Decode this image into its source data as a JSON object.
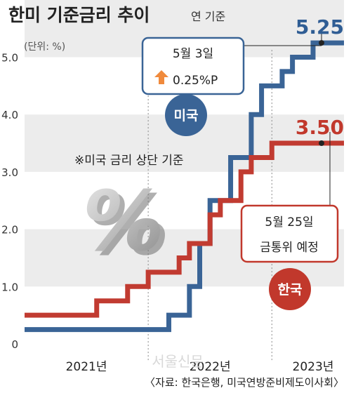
{
  "header": {
    "title": "한미 기준금리 추이",
    "subtitle": "연 기준"
  },
  "chart_data": {
    "type": "line",
    "title": "한미 기준금리 추이",
    "subtitle": "연 기준",
    "unit_label": "(단위: %)",
    "ylim": [
      0,
      5.25
    ],
    "yticks": [
      {
        "value": 0,
        "label": "0"
      },
      {
        "value": 1,
        "label": "1.0"
      },
      {
        "value": 2,
        "label": "2.0"
      },
      {
        "value": 3,
        "label": "3.0"
      },
      {
        "value": 4,
        "label": "4.0"
      },
      {
        "value": 5,
        "label": "5.0"
      }
    ],
    "xlim": [
      "2021-01",
      "2023-08"
    ],
    "xticks": [
      {
        "value": "2021-07",
        "label": "2021년"
      },
      {
        "value": "2022-07",
        "label": "2022년"
      },
      {
        "value": "2023-05",
        "label": "2023년"
      }
    ],
    "grid": "horizontal bands",
    "series": [
      {
        "name": "미국",
        "color": "#3a6496",
        "step": true,
        "points": [
          [
            "2021-01",
            0.25
          ],
          [
            "2022-03",
            0.5
          ],
          [
            "2022-05",
            1.0
          ],
          [
            "2022-06",
            1.75
          ],
          [
            "2022-07",
            2.5
          ],
          [
            "2022-09",
            3.25
          ],
          [
            "2022-11",
            4.0
          ],
          [
            "2022-12",
            4.5
          ],
          [
            "2023-02",
            4.75
          ],
          [
            "2023-03",
            5.0
          ],
          [
            "2023-05",
            5.25
          ],
          [
            "2023-08",
            5.25
          ]
        ],
        "end_label": "5.25"
      },
      {
        "name": "한국",
        "color": "#c13b31",
        "step": true,
        "points": [
          [
            "2021-01",
            0.5
          ],
          [
            "2021-08",
            0.75
          ],
          [
            "2021-11",
            1.0
          ],
          [
            "2022-01",
            1.25
          ],
          [
            "2022-04",
            1.5
          ],
          [
            "2022-05",
            1.75
          ],
          [
            "2022-07",
            2.25
          ],
          [
            "2022-08",
            2.5
          ],
          [
            "2022-10",
            3.0
          ],
          [
            "2022-11",
            3.25
          ],
          [
            "2023-01",
            3.5
          ],
          [
            "2023-08",
            3.5
          ]
        ],
        "end_label": "3.50"
      }
    ],
    "annotations": {
      "us_box_line1": "5월 3일",
      "us_box_line2": "0.25%P",
      "kr_box_line1": "5월 25일",
      "kr_box_line2": "금통위 예정",
      "note": "※미국 금리 상단 기준"
    },
    "badges": {
      "us": "미국",
      "kr": "한국"
    },
    "percent_glyph": "%",
    "source": "〈자료: 한국은행, 미국연방준비제도이사회〉",
    "watermark": "서울신문"
  }
}
